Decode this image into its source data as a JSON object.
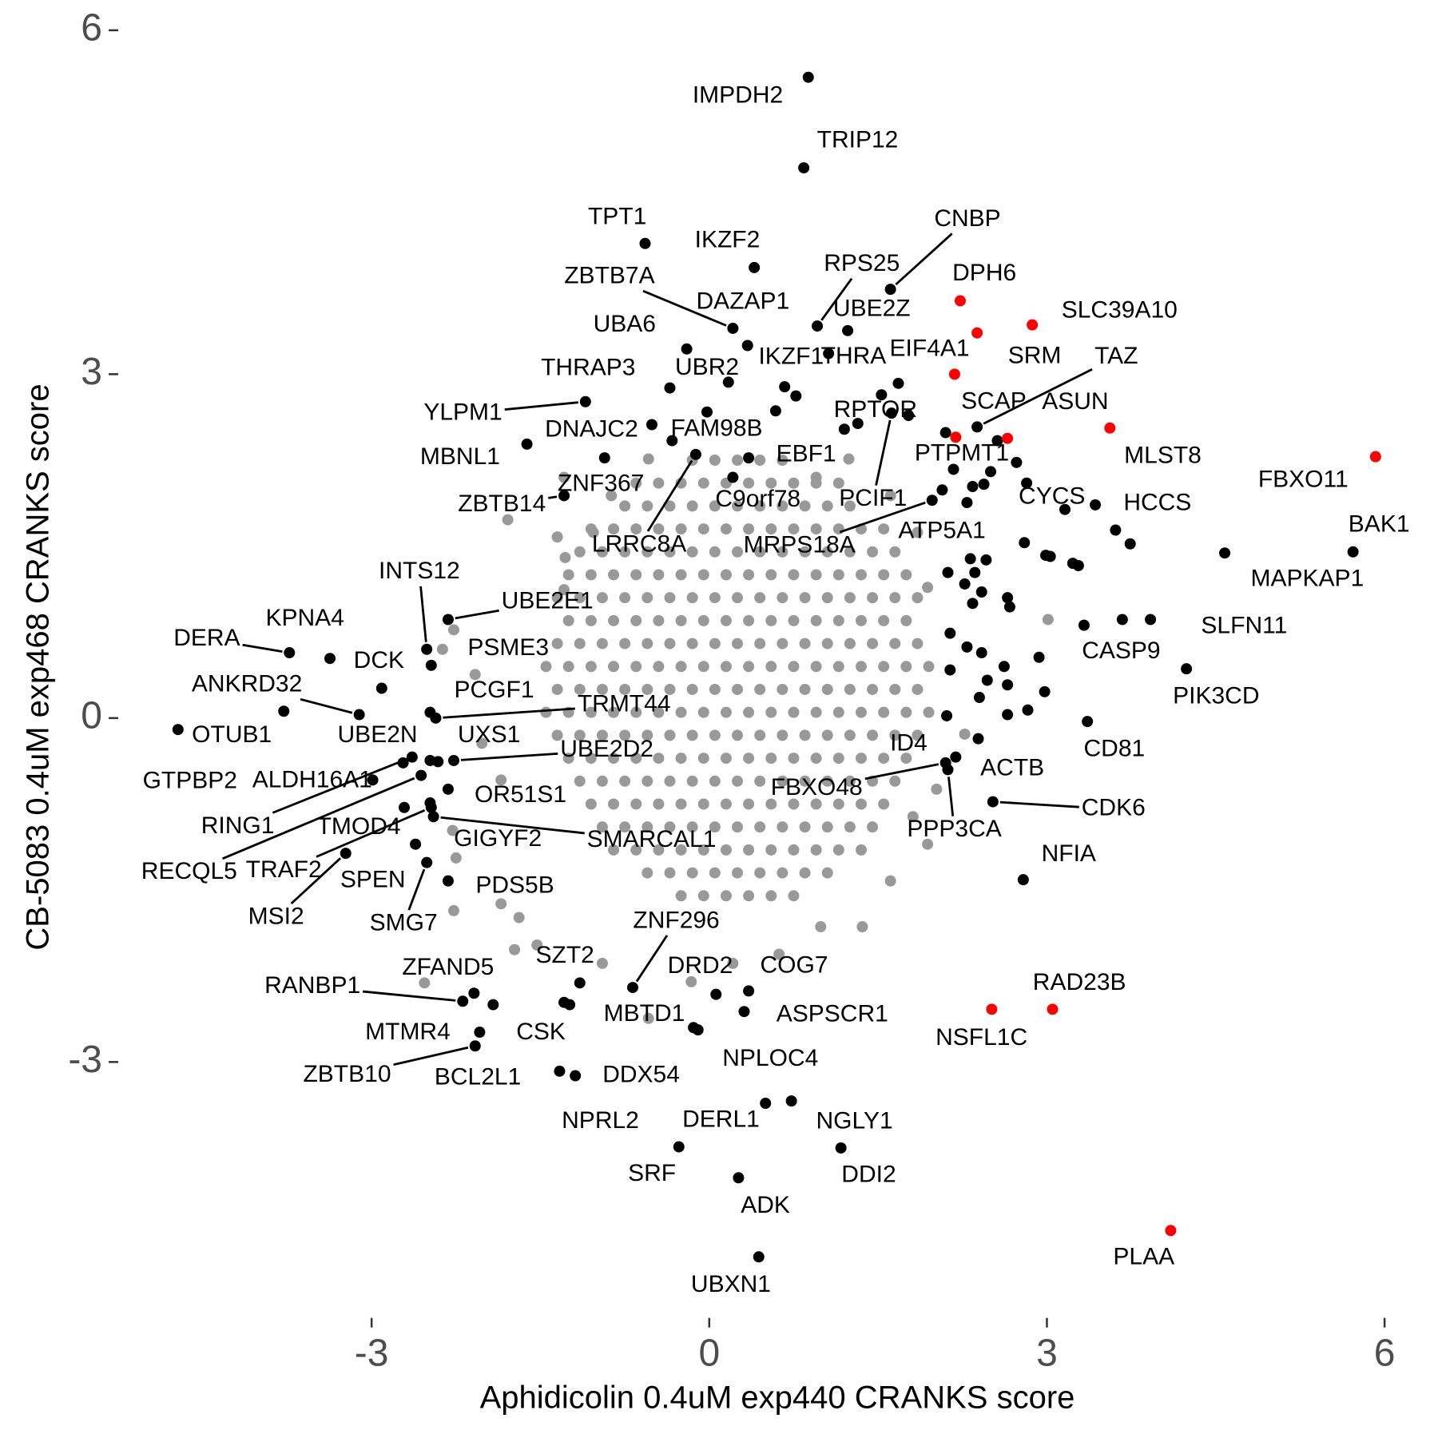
{
  "chart_data": {
    "type": "scatter",
    "xlabel": "Aphidicolin 0.4uM exp440 CRANKS score",
    "ylabel": "CB-5083 0.4uM exp468 CRANKS score",
    "xlim": [
      -5.23,
      6.31
    ],
    "ylim": [
      -5.1,
      6.18
    ],
    "xticks": [
      -3,
      0,
      3,
      6
    ],
    "yticks": [
      -3,
      0,
      3,
      6
    ],
    "series": [
      {
        "color": "#999999",
        "x": [
          -0.25,
          -0.05,
          0.15,
          0.35,
          0.55,
          0.75,
          -0.55,
          -0.35,
          -0.15,
          0.05,
          0.25,
          0.45,
          0.65,
          0.85,
          1.05,
          -0.85,
          -0.65,
          -0.45,
          -0.25,
          -0.05,
          0.15,
          0.35,
          0.55,
          0.75,
          0.95,
          1.15,
          1.35,
          -0.95,
          -0.75,
          -0.55,
          -0.35,
          -0.15,
          0.05,
          0.25,
          0.45,
          0.65,
          0.85,
          1.05,
          1.25,
          1.45,
          -1.05,
          -0.85,
          -0.65,
          -0.45,
          -0.25,
          -0.05,
          0.15,
          0.35,
          0.55,
          0.75,
          0.95,
          1.15,
          1.35,
          1.55,
          -1.15,
          -0.95,
          -0.75,
          -0.55,
          -0.35,
          -0.15,
          0.05,
          0.25,
          0.45,
          0.65,
          0.85,
          1.05,
          1.25,
          1.45,
          1.65,
          -1.25,
          -1.05,
          -0.85,
          -0.65,
          -0.45,
          -0.25,
          -0.05,
          0.15,
          0.35,
          0.55,
          0.75,
          0.95,
          1.15,
          1.35,
          1.55,
          1.75,
          -1.35,
          -1.15,
          -0.95,
          -0.75,
          -0.55,
          -0.35,
          -0.15,
          0.05,
          0.25,
          0.45,
          0.65,
          0.85,
          1.05,
          1.25,
          1.45,
          1.65,
          1.85,
          -1.45,
          -1.25,
          -1.05,
          -0.85,
          -0.65,
          -0.45,
          -0.25,
          -0.05,
          0.15,
          0.35,
          0.55,
          0.75,
          0.95,
          1.15,
          1.35,
          1.55,
          1.75,
          1.95,
          -1.35,
          -1.15,
          -0.95,
          -0.75,
          -0.55,
          -0.35,
          -0.15,
          0.05,
          0.25,
          0.45,
          0.65,
          0.85,
          1.05,
          1.25,
          1.45,
          1.65,
          1.85,
          -1.45,
          -1.25,
          -1.05,
          -0.85,
          -0.65,
          -0.45,
          -0.25,
          -0.05,
          0.15,
          0.35,
          0.55,
          0.75,
          0.95,
          1.15,
          1.35,
          1.55,
          1.75,
          1.95,
          -1.35,
          -1.15,
          -0.95,
          -0.75,
          -0.55,
          -0.35,
          -0.15,
          0.05,
          0.25,
          0.45,
          0.65,
          0.85,
          1.05,
          1.25,
          1.45,
          1.65,
          1.85,
          -1.25,
          -1.05,
          -0.85,
          -0.65,
          -0.45,
          -0.25,
          -0.05,
          0.15,
          0.35,
          0.55,
          0.75,
          0.95,
          1.15,
          1.35,
          1.55,
          1.75,
          -1.35,
          -1.15,
          -0.95,
          -0.75,
          -0.55,
          -0.35,
          -0.15,
          0.05,
          0.25,
          0.45,
          0.65,
          0.85,
          1.05,
          1.25,
          1.45,
          1.65,
          1.85,
          -1.25,
          -1.05,
          -0.85,
          -0.65,
          -0.45,
          -0.25,
          -0.05,
          0.15,
          0.35,
          0.55,
          0.75,
          0.95,
          1.15,
          1.35,
          1.55,
          1.75,
          -1.15,
          -0.95,
          -0.75,
          -0.55,
          -0.35,
          -0.15,
          0.05,
          0.25,
          0.45,
          0.65,
          0.85,
          1.05,
          1.25,
          1.45,
          1.65,
          -1.05,
          -0.85,
          -0.65,
          -0.45,
          -0.25,
          -0.05,
          0.15,
          0.35,
          0.55,
          0.75,
          0.95,
          1.15,
          1.35,
          1.55,
          -0.75,
          -0.55,
          -0.35,
          -0.15,
          0.05,
          0.25,
          0.45,
          0.65,
          0.85,
          1.05,
          1.25,
          -0.65,
          -0.45,
          -0.25,
          -0.05,
          0.15,
          0.35,
          0.55,
          0.75,
          0.95,
          1.15,
          -0.15,
          0.05,
          0.25,
          0.45,
          0.65,
          -1.79,
          -1.29,
          -1.35,
          -1.28,
          -1.29,
          -2.27,
          -2.37,
          -2.08,
          -2.02,
          -1.85,
          -2.28,
          -2.25,
          -2.27,
          -2.53,
          -1.85,
          -1.53,
          -1.69,
          -0.95,
          -0.54,
          -0.16,
          0.21,
          0.62,
          0.99,
          1.36,
          1.61,
          1.94,
          1.81,
          2.02,
          2.27,
          3.01,
          1.94,
          1.85,
          1.61,
          1.24,
          0.95,
          -0.54,
          -0.87,
          -1.03,
          -1.73
        ],
        "values": [
          -1.55,
          -1.55,
          -1.55,
          -1.55,
          -1.55,
          -1.55,
          -1.35,
          -1.35,
          -1.35,
          -1.35,
          -1.35,
          -1.35,
          -1.35,
          -1.35,
          -1.35,
          -1.15,
          -1.15,
          -1.15,
          -1.15,
          -1.15,
          -1.15,
          -1.15,
          -1.15,
          -1.15,
          -1.15,
          -1.15,
          -1.15,
          -0.95,
          -0.95,
          -0.95,
          -0.95,
          -0.95,
          -0.95,
          -0.95,
          -0.95,
          -0.95,
          -0.95,
          -0.95,
          -0.95,
          -0.95,
          -0.75,
          -0.75,
          -0.75,
          -0.75,
          -0.75,
          -0.75,
          -0.75,
          -0.75,
          -0.75,
          -0.75,
          -0.75,
          -0.75,
          -0.75,
          -0.75,
          -0.55,
          -0.55,
          -0.55,
          -0.55,
          -0.55,
          -0.55,
          -0.55,
          -0.55,
          -0.55,
          -0.55,
          -0.55,
          -0.55,
          -0.55,
          -0.55,
          -0.55,
          -0.35,
          -0.35,
          -0.35,
          -0.35,
          -0.35,
          -0.35,
          -0.35,
          -0.35,
          -0.35,
          -0.35,
          -0.35,
          -0.35,
          -0.35,
          -0.35,
          -0.35,
          -0.35,
          -0.15,
          -0.15,
          -0.15,
          -0.15,
          -0.15,
          -0.15,
          -0.15,
          -0.15,
          -0.15,
          -0.15,
          -0.15,
          -0.15,
          -0.15,
          -0.15,
          -0.15,
          -0.15,
          -0.15,
          0.05,
          0.05,
          0.05,
          0.05,
          0.05,
          0.05,
          0.05,
          0.05,
          0.05,
          0.05,
          0.05,
          0.05,
          0.05,
          0.05,
          0.05,
          0.05,
          0.05,
          0.05,
          0.25,
          0.25,
          0.25,
          0.25,
          0.25,
          0.25,
          0.25,
          0.25,
          0.25,
          0.25,
          0.25,
          0.25,
          0.25,
          0.25,
          0.25,
          0.25,
          0.25,
          0.45,
          0.45,
          0.45,
          0.45,
          0.45,
          0.45,
          0.45,
          0.45,
          0.45,
          0.45,
          0.45,
          0.45,
          0.45,
          0.45,
          0.45,
          0.45,
          0.45,
          0.45,
          0.65,
          0.65,
          0.65,
          0.65,
          0.65,
          0.65,
          0.65,
          0.65,
          0.65,
          0.65,
          0.65,
          0.65,
          0.65,
          0.65,
          0.65,
          0.65,
          0.65,
          0.85,
          0.85,
          0.85,
          0.85,
          0.85,
          0.85,
          0.85,
          0.85,
          0.85,
          0.85,
          0.85,
          0.85,
          0.85,
          0.85,
          0.85,
          0.85,
          1.05,
          1.05,
          1.05,
          1.05,
          1.05,
          1.05,
          1.05,
          1.05,
          1.05,
          1.05,
          1.05,
          1.05,
          1.05,
          1.05,
          1.05,
          1.05,
          1.05,
          1.25,
          1.25,
          1.25,
          1.25,
          1.25,
          1.25,
          1.25,
          1.25,
          1.25,
          1.25,
          1.25,
          1.25,
          1.25,
          1.25,
          1.25,
          1.25,
          1.45,
          1.45,
          1.45,
          1.45,
          1.45,
          1.45,
          1.45,
          1.45,
          1.45,
          1.45,
          1.45,
          1.45,
          1.45,
          1.45,
          1.45,
          1.65,
          1.65,
          1.65,
          1.65,
          1.65,
          1.65,
          1.65,
          1.65,
          1.65,
          1.65,
          1.65,
          1.65,
          1.65,
          1.65,
          1.85,
          1.85,
          1.85,
          1.85,
          1.85,
          1.85,
          1.85,
          1.85,
          1.85,
          1.85,
          1.85,
          2.05,
          2.05,
          2.05,
          2.05,
          2.05,
          2.05,
          2.05,
          2.05,
          2.05,
          2.05,
          2.25,
          2.25,
          2.25,
          2.25,
          2.25,
          1.73,
          2.1,
          1.58,
          1.4,
          1.12,
          0.77,
          0.6,
          0.38,
          -0.22,
          -0.54,
          -0.98,
          -1.22,
          -1.68,
          -2.31,
          -1.62,
          -1.98,
          -1.74,
          -2.14,
          -2.62,
          -2.3,
          -2.14,
          -2.06,
          -1.82,
          -1.82,
          -1.42,
          -1.1,
          -0.86,
          -0.62,
          -0.14,
          0.86,
          1.14,
          1.62,
          1.94,
          2.26,
          2.1,
          2.26,
          1.94,
          1.62,
          -2.02
        ]
      },
      {
        "color": "#000000",
        "x": [
          0.88,
          0.84,
          -0.57,
          0.4,
          1.61,
          0.96,
          1.23,
          0.21,
          0.34,
          -0.2,
          0.67,
          1.06,
          2.38,
          -0.35,
          -1.1,
          0.17,
          1.32,
          -1.62,
          -0.51,
          -0.33,
          0.35,
          -0.93,
          -1.29,
          -0.12,
          0.21,
          1.62,
          2.5,
          2.29,
          1.98,
          3.16,
          3.43,
          5.72,
          4.58,
          3.92,
          3.33,
          4.24,
          3.36,
          2.52,
          2.79,
          2.19,
          2.11,
          2.1,
          2.12,
          -2.51,
          -2.32,
          -3.37,
          -3.73,
          -2.91,
          -2.47,
          -3.11,
          -4.72,
          -3.78,
          -2.48,
          -2.43,
          -2.41,
          -2.27,
          -2.99,
          -2.72,
          -2.32,
          -2.64,
          -2.71,
          -2.56,
          -2.47,
          -2.48,
          -2.45,
          -2.61,
          -3.23,
          -2.51,
          -2.32,
          -0.68,
          -1.15,
          0.06,
          0.35,
          -2.09,
          -2.19,
          -0.14,
          0.31,
          -1.92,
          -1.24,
          -2.08,
          -2.04,
          -0.1,
          -1.19,
          -1.33,
          0.5,
          0.73,
          -0.27,
          1.17,
          0.26,
          0.44,
          2.1,
          2.17,
          2.34,
          2.44,
          2.82,
          2.8,
          2.99,
          3.03,
          3.23,
          3.28,
          3.61,
          3.74,
          2.32,
          2.46,
          2.12,
          2.36,
          2.27,
          2.42,
          2.65,
          2.14,
          2.29,
          2.42,
          2.62,
          2.93,
          2.47,
          2.65,
          2.14,
          2.98,
          2.83,
          2.65,
          2.4,
          2.39,
          3.67,
          2.73,
          2.56,
          2.34,
          2.67,
          1.53,
          1.68,
          0.77,
          0.59,
          -0.02,
          1.2,
          1.77,
          2.07,
          -2.48,
          -1.29
        ],
        "values": [
          5.59,
          4.8,
          4.14,
          3.93,
          3.74,
          3.42,
          3.38,
          3.4,
          3.25,
          3.22,
          2.89,
          3.18,
          2.54,
          2.88,
          2.76,
          2.93,
          2.57,
          2.39,
          2.56,
          2.42,
          2.27,
          2.27,
          1.94,
          2.3,
          2.1,
          2.66,
          2.15,
          1.88,
          1.9,
          1.82,
          1.86,
          1.45,
          1.44,
          0.86,
          0.81,
          0.43,
          -0.03,
          -0.73,
          -1.41,
          -0.34,
          0.02,
          -0.39,
          -0.45,
          0.6,
          0.86,
          0.52,
          0.57,
          0.26,
          0.46,
          0.03,
          -0.1,
          0.06,
          0.05,
          0,
          -0.38,
          -0.37,
          -0.54,
          -0.39,
          -0.62,
          -0.34,
          -0.78,
          -0.5,
          -0.78,
          -0.74,
          -0.86,
          -1.1,
          -1.18,
          -1.26,
          -1.42,
          -2.35,
          -2.31,
          -2.41,
          -2.38,
          -2.4,
          -2.47,
          -2.7,
          -2.56,
          -2.5,
          -2.5,
          -2.86,
          -2.74,
          -2.72,
          -3.12,
          -3.08,
          -3.36,
          -3.34,
          -3.74,
          -3.75,
          -4.01,
          -4.7,
          2.49,
          2.17,
          2.02,
          2.04,
          2.05,
          1.53,
          1.42,
          1.41,
          1.35,
          1.33,
          1.64,
          1.52,
          1.39,
          1.38,
          1.27,
          1.27,
          1.17,
          1.1,
          1.05,
          0.74,
          0.62,
          0.57,
          0.45,
          0.53,
          0.33,
          0.29,
          0.42,
          0.23,
          0.07,
          0.03,
          0.18,
          -0.18,
          0.86,
          2.23,
          2.42,
          1.0,
          0.97,
          2.82,
          2.92,
          2.81,
          2.68,
          2.67,
          2.52,
          2.64,
          1.99,
          -0.37,
          -2.48
        ],
        "labels": [
          "IMPDH2",
          "TRIP12",
          "TPT1",
          "IKZF2",
          "CNBP",
          "RPS25",
          "UBE2Z",
          "ZBTB7A",
          "DAZAP1",
          "UBA6",
          "IKZF1",
          "THRA",
          "TAZ",
          "THRAP3",
          "YLPM1",
          "UBR2",
          "RPTOR",
          "MBNL1",
          "DNAJC2",
          "FAM98B",
          "EBF1",
          "ZNF367",
          "ZBTB14",
          "LRRC8A",
          "C9orf78",
          "PCIF1",
          "PTPMT1",
          "ATP5A1",
          "MRPS18A",
          "CYCS",
          "HCCS",
          "BAK1",
          "MAPKAP1",
          "SLFN11",
          "CASP9",
          "PIK3CD",
          "CD81",
          "CDK6",
          "NFIA",
          "ACTB",
          "ID4",
          "FBXO48",
          "PPP3CA",
          "INTS12",
          "UBE2E1",
          "KPNA4",
          "DERA",
          "DCK",
          "PSME3",
          "ANKRD32",
          "OTUB1",
          "UBE2N",
          "PCGF1",
          "TRMT44",
          "UXS1",
          "UBE2D2",
          "GTPBP2",
          "ALDH16A1",
          "OR51S1",
          "RING1",
          "TMOD4",
          "RECQL5",
          "TRAF2",
          "GIGYF2",
          "SMARCAL1",
          "SPEN",
          "MSI2",
          "SMG7",
          "PDS5B",
          "ZNF296",
          "SZT2",
          "DRD2",
          "COG7",
          "ZFAND5",
          "RANBP1",
          "MBTD1",
          "ASPSCR1",
          "MTMR4",
          "CSK",
          "ZBTB10",
          "BCL2L1",
          "NPLOC4",
          "DDX54",
          "NPRL2",
          "DERL1",
          "NGLY1",
          "SRF",
          "DDI2",
          "ADK",
          "UBXN1",
          null,
          null,
          null,
          null,
          null,
          null,
          null,
          null,
          null,
          null,
          null,
          null,
          null,
          null,
          null,
          null,
          null,
          null,
          null,
          null,
          null,
          null,
          null,
          null,
          null,
          null,
          null,
          null,
          null,
          null,
          null,
          null,
          null,
          null,
          null,
          null,
          null,
          null,
          null,
          null,
          null,
          null,
          null,
          null,
          null,
          null,
          null
        ]
      },
      {
        "color": "#ff0000",
        "x": [
          2.23,
          2.87,
          2.18,
          2.38,
          2.19,
          2.65,
          3.56,
          5.92,
          3.05,
          2.51,
          4.1
        ],
        "values": [
          3.64,
          3.43,
          3.0,
          3.36,
          2.45,
          2.44,
          2.53,
          2.28,
          -2.54,
          -2.54,
          -4.47
        ],
        "labels": [
          "DPH6",
          "SLC39A10",
          "EIF4A1",
          "SRM",
          "SCAP",
          "ASUN",
          "MLST8",
          "FBXO11",
          "RAD23B",
          "NSFL1C",
          "PLAA"
        ]
      }
    ]
  }
}
